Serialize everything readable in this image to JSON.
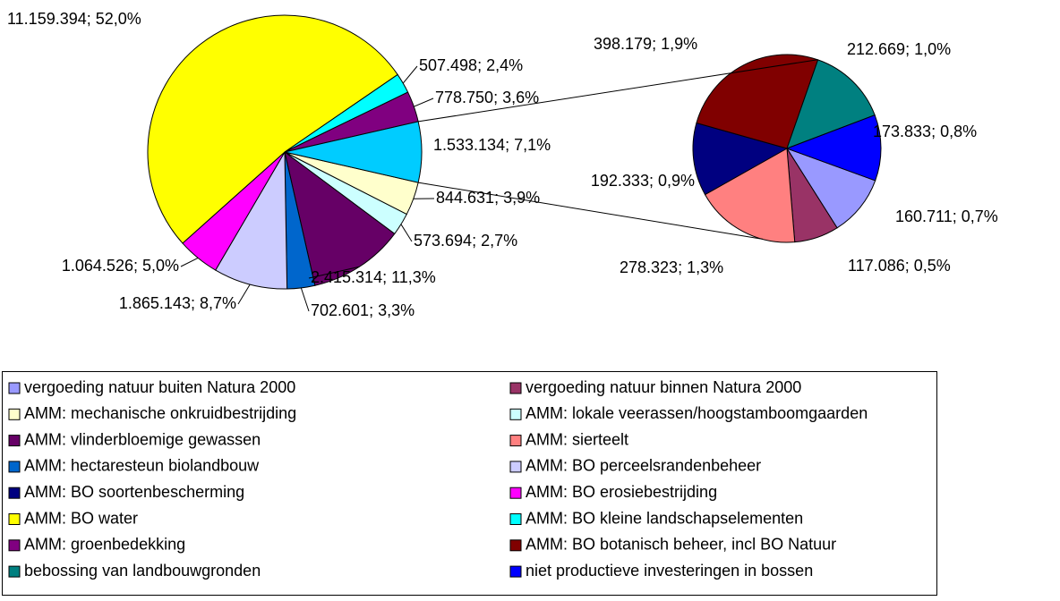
{
  "chart_data": {
    "type": "pie-of-pie",
    "series": [
      {
        "name": "vergoeding natuur buiten Natura 2000",
        "color": "#9999FF",
        "value": 160711,
        "value_label": "160.711; 0,7%",
        "plot": "secondary"
      },
      {
        "name": "vergoeding natuur binnen Natura 2000",
        "color": "#993366",
        "value": 117086,
        "value_label": "117.086; 0,5%",
        "plot": "secondary"
      },
      {
        "name": "AMM: mechanische onkruidbestrijding",
        "color": "#FFFFCC",
        "value": 844631,
        "value_label": "844.631; 3,9%",
        "plot": "primary"
      },
      {
        "name": "AMM: lokale veerassen/hoogstamboomgaarden",
        "color": "#CCFFFF",
        "value": 573694,
        "value_label": "573.694; 2,7%",
        "plot": "primary"
      },
      {
        "name": "AMM: vlinderbloemige gewassen",
        "color": "#660066",
        "value": 2415314,
        "value_label": "2.415.314; 11,3%",
        "plot": "primary"
      },
      {
        "name": "AMM: sierteelt",
        "color": "#FF8080",
        "value": 278323,
        "value_label": "278.323; 1,3%",
        "plot": "secondary"
      },
      {
        "name": "AMM: hectaresteun biolandbouw",
        "color": "#0066CC",
        "value": 702601,
        "value_label": "702.601; 3,3%",
        "plot": "primary"
      },
      {
        "name": "AMM: BO perceelsrandenbeheer",
        "color": "#CCCCFF",
        "value": 1865143,
        "value_label": "1.865.143; 8,7%",
        "plot": "primary"
      },
      {
        "name": "AMM: BO soortenbescherming",
        "color": "#000080",
        "value": 192333,
        "value_label": "192.333; 0,9%",
        "plot": "secondary"
      },
      {
        "name": "AMM: BO erosiebestrijding",
        "color": "#FF00FF",
        "value": 1064526,
        "value_label": "1.064.526; 5,0%",
        "plot": "primary"
      },
      {
        "name": "AMM: BO water",
        "color": "#FFFF00",
        "value": 11159394,
        "value_label": "11.159.394; 52,0%",
        "plot": "primary"
      },
      {
        "name": "AMM: BO kleine landschapselementen",
        "color": "#00FFFF",
        "value": 507498,
        "value_label": "507.498; 2,4%",
        "plot": "primary"
      },
      {
        "name": "AMM: groenbedekking",
        "color": "#800080",
        "value": 778750,
        "value_label": "778.750; 3,6%",
        "plot": "primary"
      },
      {
        "name": "AMM: BO botanisch beheer, incl BO Natuur",
        "color": "#800000",
        "value": 398179,
        "value_label": "398.179; 1,9%",
        "plot": "secondary"
      },
      {
        "name": "bebossing van landbouwgronden",
        "color": "#008080",
        "value": 212669,
        "value_label": "212.669; 1,0%",
        "plot": "secondary"
      },
      {
        "name": "niet productieve investeringen in bossen",
        "color": "#0000FF",
        "value": 173833,
        "value_label": "173.833; 0,8%",
        "plot": "secondary"
      }
    ],
    "other": {
      "color": "#00CCFF",
      "value": 1533134,
      "value_label": "1.533.134; 7,1%"
    },
    "legend": "bottom"
  }
}
